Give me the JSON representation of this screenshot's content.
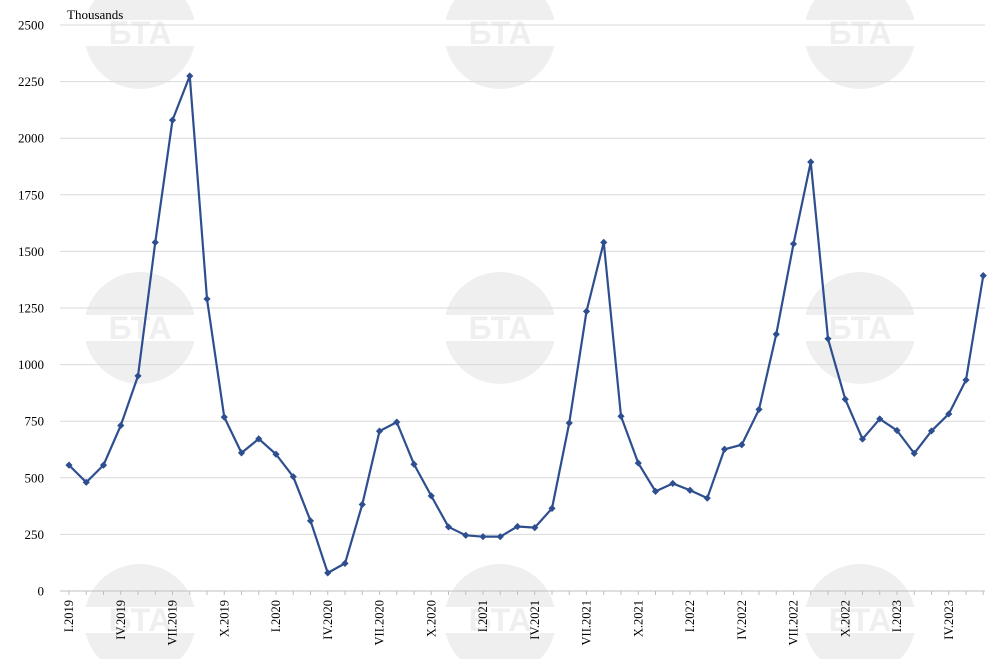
{
  "chart_data": {
    "type": "line",
    "unit_label": "Thousands",
    "ylim": [
      0,
      2500
    ],
    "y_ticks": [
      0,
      250,
      500,
      750,
      1000,
      1250,
      1500,
      1750,
      2000,
      2250,
      2500
    ],
    "x_tick_labels": [
      {
        "index": 0,
        "label": "I.2019"
      },
      {
        "index": 3,
        "label": "IV.2019"
      },
      {
        "index": 6,
        "label": "VII.2019"
      },
      {
        "index": 9,
        "label": "X.2019"
      },
      {
        "index": 12,
        "label": "I.2020"
      },
      {
        "index": 15,
        "label": "IV.2020"
      },
      {
        "index": 18,
        "label": "VII.2020"
      },
      {
        "index": 21,
        "label": "X.2020"
      },
      {
        "index": 24,
        "label": "I.2021"
      },
      {
        "index": 27,
        "label": "IV.2021"
      },
      {
        "index": 30,
        "label": "VII.2021"
      },
      {
        "index": 33,
        "label": "X.2021"
      },
      {
        "index": 36,
        "label": "I.2022"
      },
      {
        "index": 39,
        "label": "IV.2022"
      },
      {
        "index": 42,
        "label": "VII.2022"
      },
      {
        "index": 45,
        "label": "X.2022"
      },
      {
        "index": 48,
        "label": "I.2023"
      },
      {
        "index": 51,
        "label": "IV.2023"
      }
    ],
    "series": [
      {
        "color": "#2E4F8F",
        "values": [
          556,
          480,
          556,
          731,
          950,
          1540,
          2080,
          2275,
          1290,
          768,
          610,
          672,
          604,
          505,
          310,
          80,
          122,
          382,
          706,
          746,
          560,
          420,
          283,
          246,
          240,
          240,
          285,
          280,
          365,
          742,
          1235,
          1540,
          772,
          565,
          440,
          475,
          445,
          410,
          626,
          646,
          802,
          1134,
          1533,
          1895,
          1114,
          847,
          671,
          760,
          709,
          608,
          707,
          782,
          932,
          1393
        ]
      }
    ],
    "grid": "horizontal"
  },
  "watermark": {
    "text": "БТА"
  }
}
